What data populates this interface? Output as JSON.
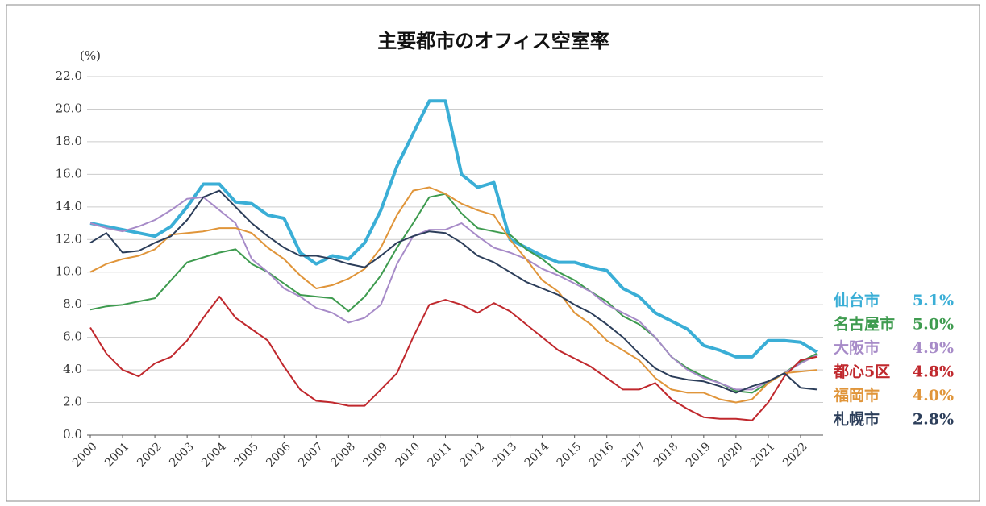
{
  "chart_data": {
    "type": "line",
    "title": "主要都市のオフィス空室率",
    "ylabel": "(%)",
    "x": [
      2000,
      2000.5,
      2001,
      2001.5,
      2002,
      2002.5,
      2003,
      2003.5,
      2004,
      2004.5,
      2005,
      2005.5,
      2006,
      2006.5,
      2007,
      2007.5,
      2008,
      2008.5,
      2009,
      2009.5,
      2010,
      2010.5,
      2011,
      2011.5,
      2012,
      2012.5,
      2013,
      2013.5,
      2014,
      2014.5,
      2015,
      2015.5,
      2016,
      2016.5,
      2017,
      2017.5,
      2018,
      2018.5,
      2019,
      2019.5,
      2020,
      2020.5,
      2021,
      2021.5,
      2022,
      2022.5
    ],
    "series": [
      {
        "name": "仙台市",
        "color": "#3aaed6",
        "width": 4,
        "last_label": "5.1%",
        "values": [
          13.0,
          12.8,
          12.6,
          12.4,
          12.2,
          12.8,
          14.0,
          15.4,
          15.4,
          14.3,
          14.2,
          13.5,
          13.3,
          11.2,
          10.5,
          11.0,
          10.8,
          11.8,
          13.8,
          16.5,
          18.5,
          20.5,
          20.5,
          16.0,
          15.2,
          15.5,
          12.0,
          11.5,
          11.0,
          10.6,
          10.6,
          10.3,
          10.1,
          9.0,
          8.5,
          7.5,
          7.0,
          6.5,
          5.5,
          5.2,
          4.8,
          4.8,
          5.8,
          5.8,
          5.7,
          5.1
        ]
      },
      {
        "name": "名古屋市",
        "color": "#3e9b4f",
        "width": 2,
        "last_label": "5.0%",
        "values": [
          7.7,
          7.9,
          8.0,
          8.2,
          8.4,
          9.5,
          10.6,
          10.9,
          11.2,
          11.4,
          10.5,
          10.0,
          9.3,
          8.6,
          8.5,
          8.4,
          7.6,
          8.5,
          9.8,
          11.5,
          13.0,
          14.6,
          14.8,
          13.6,
          12.7,
          12.5,
          12.3,
          11.4,
          10.8,
          10.0,
          9.5,
          8.8,
          8.2,
          7.3,
          6.8,
          6.0,
          4.8,
          4.1,
          3.6,
          3.2,
          2.7,
          2.6,
          3.2,
          3.8,
          4.5,
          5.0
        ]
      },
      {
        "name": "大阪市",
        "color": "#a78bc8",
        "width": 2,
        "last_label": "4.9%",
        "values": [
          13.0,
          12.7,
          12.5,
          12.8,
          13.2,
          13.8,
          14.5,
          14.6,
          13.8,
          13.0,
          10.8,
          10.0,
          9.0,
          8.5,
          7.8,
          7.5,
          6.9,
          7.2,
          8.0,
          10.5,
          12.2,
          12.6,
          12.6,
          13.0,
          12.2,
          11.5,
          11.2,
          10.8,
          10.2,
          9.8,
          9.3,
          8.8,
          8.0,
          7.5,
          7.0,
          6.0,
          4.8,
          4.0,
          3.5,
          3.2,
          2.8,
          2.8,
          3.3,
          3.8,
          4.4,
          4.9
        ]
      },
      {
        "name": "都心5区",
        "color": "#c0282d",
        "width": 2,
        "last_label": "4.8%",
        "values": [
          6.6,
          5.0,
          4.0,
          3.6,
          4.4,
          4.8,
          5.8,
          7.2,
          8.5,
          7.2,
          6.5,
          5.8,
          4.2,
          2.8,
          2.1,
          2.0,
          1.8,
          1.8,
          2.8,
          3.8,
          6.0,
          8.0,
          8.3,
          8.0,
          7.5,
          8.1,
          7.6,
          6.8,
          6.0,
          5.2,
          4.7,
          4.2,
          3.5,
          2.8,
          2.8,
          3.2,
          2.2,
          1.6,
          1.1,
          1.0,
          1.0,
          0.9,
          2.0,
          3.6,
          4.6,
          4.8
        ]
      },
      {
        "name": "福岡市",
        "color": "#e0953a",
        "width": 2,
        "last_label": "4.0%",
        "values": [
          10.0,
          10.5,
          10.8,
          11.0,
          11.4,
          12.3,
          12.4,
          12.5,
          12.7,
          12.7,
          12.4,
          11.5,
          10.8,
          9.8,
          9.0,
          9.2,
          9.6,
          10.2,
          11.5,
          13.5,
          15.0,
          15.2,
          14.8,
          14.2,
          13.8,
          13.5,
          12.0,
          10.8,
          9.5,
          8.8,
          7.5,
          6.8,
          5.8,
          5.2,
          4.6,
          3.5,
          2.8,
          2.6,
          2.6,
          2.2,
          2.0,
          2.2,
          3.2,
          3.8,
          3.9,
          4.0
        ]
      },
      {
        "name": "札幌市",
        "color": "#2c3e5a",
        "width": 2,
        "last_label": "2.8%",
        "values": [
          11.8,
          12.4,
          11.2,
          11.3,
          11.8,
          12.2,
          13.2,
          14.6,
          15.0,
          14.0,
          13.0,
          12.2,
          11.5,
          11.0,
          11.0,
          10.8,
          10.5,
          10.3,
          11.0,
          11.8,
          12.2,
          12.5,
          12.4,
          11.8,
          11.0,
          10.6,
          10.0,
          9.4,
          9.0,
          8.6,
          8.0,
          7.5,
          6.8,
          6.0,
          5.0,
          4.1,
          3.6,
          3.4,
          3.3,
          3.0,
          2.6,
          3.0,
          3.3,
          3.8,
          2.9,
          2.8
        ]
      }
    ],
    "xlim": [
      2000,
      2022.7
    ],
    "xticks": [
      2000,
      2001,
      2002,
      2003,
      2004,
      2005,
      2006,
      2007,
      2008,
      2009,
      2010,
      2011,
      2012,
      2013,
      2014,
      2015,
      2016,
      2017,
      2018,
      2019,
      2020,
      2021,
      2022
    ],
    "ylim": [
      0,
      22
    ],
    "yticks": [
      {
        "value": 0,
        "label": "0.0"
      },
      {
        "value": 2,
        "label": "2.0"
      },
      {
        "value": 4,
        "label": "4.0"
      },
      {
        "value": 6,
        "label": "6.0"
      },
      {
        "value": 8,
        "label": "8.0"
      },
      {
        "value": 10,
        "label": "10.0"
      },
      {
        "value": 12,
        "label": "12.0"
      },
      {
        "value": 14,
        "label": "14.0"
      },
      {
        "value": 16,
        "label": "16.0"
      },
      {
        "value": 18,
        "label": "18.0"
      },
      {
        "value": 20,
        "label": "20.0"
      },
      {
        "value": 22,
        "label": "22.0"
      }
    ],
    "grid": true
  }
}
